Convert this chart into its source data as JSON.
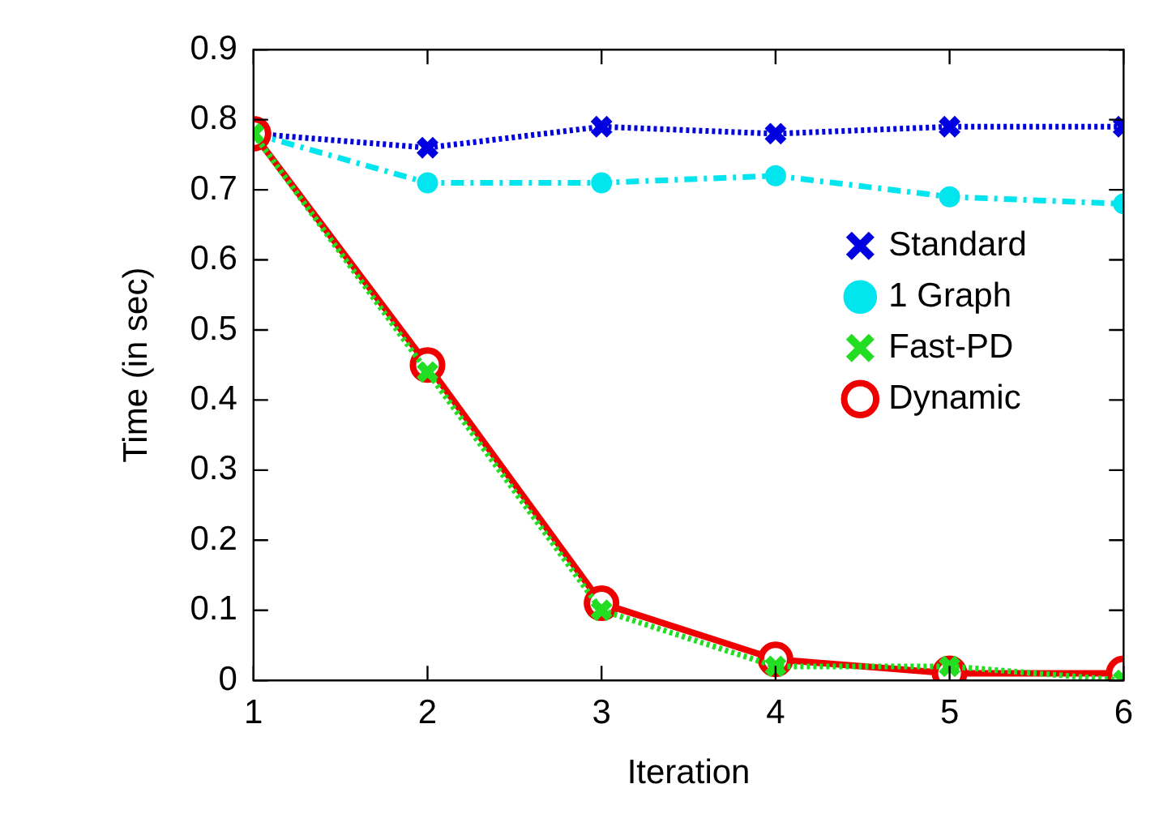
{
  "chart_data": {
    "type": "line",
    "xlabel": "Iteration",
    "ylabel": "Time (in sec)",
    "x": [
      1,
      2,
      3,
      4,
      5,
      6
    ],
    "xlim": [
      1,
      6
    ],
    "xticks": [
      1,
      2,
      3,
      4,
      5,
      6
    ],
    "ylim": [
      0,
      0.9
    ],
    "yticks": [
      0,
      0.1,
      0.2,
      0.3,
      0.4,
      0.5,
      0.6,
      0.7,
      0.8,
      0.9
    ],
    "grid": false,
    "legend": "right",
    "series": [
      {
        "name": "Standard",
        "color": "#0000e0",
        "marker": "cross",
        "line_style": "dotted",
        "values": [
          0.78,
          0.76,
          0.79,
          0.78,
          0.79,
          0.79
        ]
      },
      {
        "name": "1 Graph",
        "color": "#00e5ee",
        "marker": "circle",
        "line_style": "dashed",
        "values": [
          0.78,
          0.71,
          0.71,
          0.72,
          0.69,
          0.68
        ]
      },
      {
        "name": "Fast-PD",
        "color": "#22dd22",
        "marker": "cross",
        "line_style": "dotted",
        "values": [
          0.78,
          0.44,
          0.1,
          0.02,
          0.02,
          0.0
        ]
      },
      {
        "name": "Dynamic",
        "color": "#ee0000",
        "marker": "circle",
        "line_style": "solid",
        "values": [
          0.78,
          0.45,
          0.11,
          0.03,
          0.01,
          0.01
        ]
      }
    ]
  }
}
